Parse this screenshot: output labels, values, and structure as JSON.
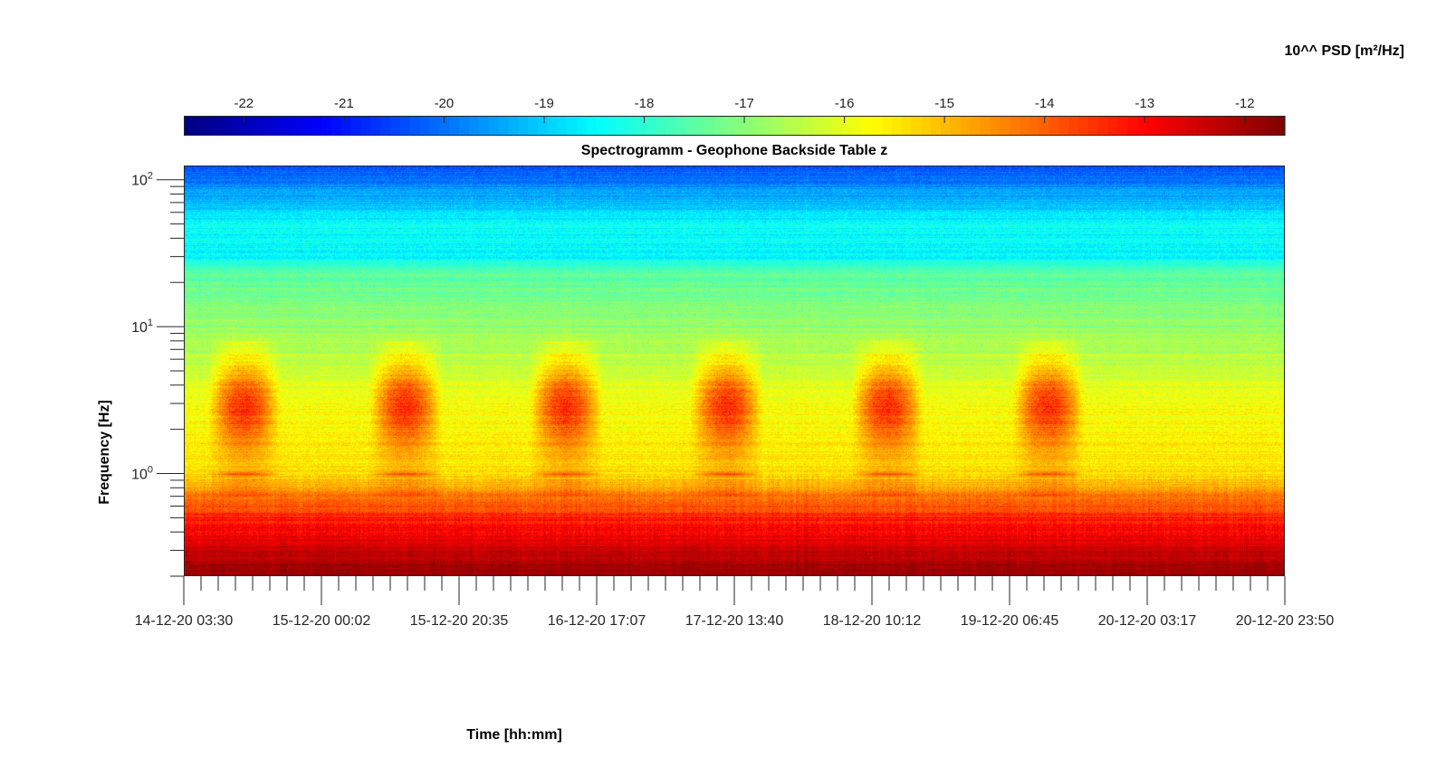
{
  "chart_data": {
    "type": "heatmap",
    "title": "Spectrogramm - Geophone Backside Table z",
    "xlabel": "Time [hh:mm]",
    "ylabel": "Frequency [Hz]",
    "x_ticks": [
      "14-12-20 03:30",
      "15-12-20 00:02",
      "15-12-20 20:35",
      "16-12-20 17:07",
      "17-12-20 13:40",
      "18-12-20 10:12",
      "19-12-20 06:45",
      "20-12-20 03:17",
      "20-12-20 23:50"
    ],
    "y_scale": "log",
    "y_ticks": [
      {
        "base": "10",
        "exp": "0"
      },
      {
        "base": "10",
        "exp": "1"
      },
      {
        "base": "10",
        "exp": "2"
      }
    ],
    "ylim": [
      0.2,
      125
    ],
    "colorbar": {
      "label": "10^^ PSD [m²/Hz]",
      "ticks": [
        "-22",
        "-21",
        "-20",
        "-19",
        "-18",
        "-17",
        "-16",
        "-15",
        "-14",
        "-13",
        "-12"
      ],
      "range": [
        -22.6,
        -11.6
      ],
      "colormap": "jet",
      "location": "top"
    },
    "day_patterns": [
      {
        "start": "14-12-20 07:00",
        "end": "14-12-20 18:00"
      },
      {
        "start": "15-12-20 07:00",
        "end": "15-12-20 18:00"
      },
      {
        "start": "16-12-20 07:00",
        "end": "16-12-20 18:00"
      },
      {
        "start": "17-12-20 07:00",
        "end": "17-12-20 18:00"
      },
      {
        "start": "18-12-20 07:00",
        "end": "18-12-20 18:00"
      },
      {
        "start": "19-12-20 07:00",
        "end": "19-12-20 18:00"
      }
    ],
    "spectrum_levels": [
      {
        "f": 0.2,
        "psd": -11.8
      },
      {
        "f": 0.4,
        "psd": -12.8
      },
      {
        "f": 0.7,
        "psd": -14.2
      },
      {
        "f": 1.0,
        "psd": -15.4
      },
      {
        "f": 3.0,
        "psd": -15.8
      },
      {
        "f": 6.0,
        "psd": -16.4
      },
      {
        "f": 12.0,
        "psd": -17.0
      },
      {
        "f": 25.0,
        "psd": -17.6
      },
      {
        "f": 30.0,
        "psd": -18.6
      },
      {
        "f": 50.0,
        "psd": -18.4
      },
      {
        "f": 70.0,
        "psd": -19.2
      },
      {
        "f": 125.0,
        "psd": -20.4
      }
    ],
    "grid": false
  }
}
